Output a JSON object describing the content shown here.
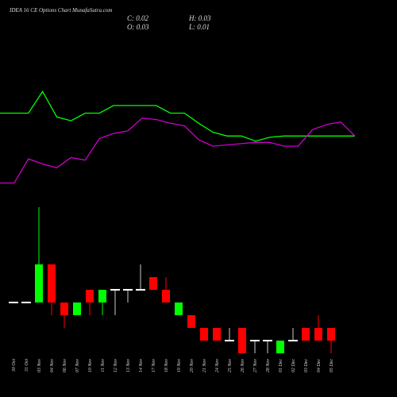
{
  "chart_data": {
    "type": "candlestick",
    "title": "IDEA 16 CE Options Chart MunafaSutra.com",
    "ohlc_labels": [
      "C: 0.02",
      "H: 0.03",
      "O: 0.03",
      "L: 0.01"
    ],
    "categories": [
      "30 Oct",
      "31 Oct",
      "03 Nov",
      "04 Nov",
      "06 Nov",
      "07 Nov",
      "10 Nov",
      "11 Nov",
      "12 Nov",
      "13 Nov",
      "14 Nov",
      "17 Nov",
      "18 Nov",
      "19 Nov",
      "20 Nov",
      "21 Nov",
      "24 Nov",
      "25 Nov",
      "26 Nov",
      "27 Nov",
      "28 Nov",
      "01 Dec",
      "02 Dec",
      "03 Dec",
      "04 Dec",
      "05 Dec"
    ],
    "open": [
      0.05,
      0.05,
      0.05,
      0.08,
      0.05,
      0.04,
      0.06,
      0.05,
      0.06,
      0.06,
      0.06,
      0.07,
      0.06,
      0.04,
      0.04,
      0.03,
      0.03,
      0.02,
      0.03,
      0.02,
      0.02,
      0.01,
      0.02,
      0.03,
      0.03,
      0.03
    ],
    "high": [
      0.05,
      0.05,
      0.125,
      0.08,
      0.05,
      0.05,
      0.06,
      0.06,
      0.06,
      0.06,
      0.08,
      0.07,
      0.07,
      0.05,
      0.04,
      0.03,
      0.03,
      0.03,
      0.03,
      0.02,
      0.02,
      0.02,
      0.03,
      0.03,
      0.04,
      0.03
    ],
    "low": [
      0.05,
      0.05,
      0.05,
      0.04,
      0.03,
      0.04,
      0.04,
      0.04,
      0.04,
      0.05,
      0.06,
      0.06,
      0.05,
      0.04,
      0.03,
      0.02,
      0.02,
      0.02,
      0.01,
      0.01,
      0.01,
      0.01,
      0.02,
      0.02,
      0.02,
      0.01
    ],
    "close": [
      0.05,
      0.05,
      0.08,
      0.05,
      0.04,
      0.05,
      0.05,
      0.06,
      0.06,
      0.06,
      0.06,
      0.06,
      0.05,
      0.05,
      0.03,
      0.02,
      0.02,
      0.02,
      0.01,
      0.02,
      0.02,
      0.02,
      0.02,
      0.02,
      0.02,
      0.02
    ],
    "up_color": "#00ff00",
    "down_color": "#ff0000",
    "flat_color": "#ffffff",
    "series": [
      {
        "color": "#00ff00",
        "values": [
          0.199,
          0.199,
          0.199,
          0.216,
          0.196,
          0.193,
          0.199,
          0.199,
          0.205,
          0.205,
          0.205,
          0.205,
          0.199,
          0.199,
          0.191,
          0.184,
          0.181,
          0.181,
          0.177,
          0.18,
          0.181,
          0.181,
          0.181,
          0.181,
          0.181,
          0.181
        ]
      },
      {
        "color": "#cc00cc",
        "values": [
          0.144,
          0.144,
          0.163,
          0.159,
          0.156,
          0.164,
          0.162,
          0.179,
          0.183,
          0.185,
          0.195,
          0.194,
          0.191,
          0.189,
          0.178,
          0.173,
          0.174,
          0.175,
          0.176,
          0.176,
          0.173,
          0.173,
          0.186,
          0.19,
          0.192,
          0.181
        ]
      }
    ],
    "ylim": [
      0,
      0.288
    ]
  }
}
